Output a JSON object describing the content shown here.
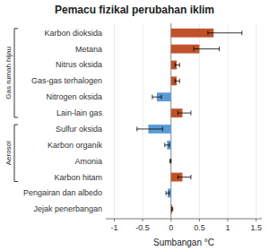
{
  "chart_data": {
    "type": "bar",
    "orientation": "horizontal",
    "title": "Pemacu fizikal perubahan iklim",
    "xlabel": "Sumbangan °C",
    "categories": [
      "Karbon dioksida",
      "Metana",
      "Nitrus oksida",
      "Gas-gas terhalogen",
      "Nitrogen oksida",
      "Lain-lain gas",
      "Sulfur oksida",
      "Karbon organik",
      "Amonia",
      "Karbon hitam",
      "Pengairan dan albedo",
      "Jejak penerbangan"
    ],
    "values": [
      0.75,
      0.5,
      0.1,
      0.1,
      -0.25,
      0.2,
      -0.4,
      -0.07,
      -0.01,
      0.2,
      -0.06,
      0.02
    ],
    "errors_low": [
      0.1,
      0.1,
      0.03,
      0.03,
      0.08,
      0.08,
      0.2,
      0.04,
      0.01,
      0.08,
      0.03,
      0.01
    ],
    "errors_high": [
      0.5,
      0.35,
      0.05,
      0.05,
      0.08,
      0.15,
      0.25,
      0.04,
      0.01,
      0.15,
      0.03,
      0.01
    ],
    "colors": [
      "#c0522a",
      "#c0522a",
      "#c0522a",
      "#c0522a",
      "#5b9bd5",
      "#c0522a",
      "#5b9bd5",
      "#5b9bd5",
      "#5b9bd5",
      "#c0522a",
      "#5b9bd5",
      "#c0522a"
    ],
    "groups": [
      {
        "label": "Gas rumah hijau",
        "categories": [
          "Karbon dioksida",
          "Metana",
          "Nitrus oksida",
          "Gas-gas terhalogen",
          "Nitrogen oksida",
          "Lain-lain gas"
        ]
      },
      {
        "label": "Aerosol",
        "categories": [
          "Sulfur oksida",
          "Karbon organik",
          "Amonia",
          "Karbon hitam"
        ]
      }
    ],
    "xlim": [
      -1.15,
      1.6
    ],
    "xticks": [
      -1,
      -0.5,
      0,
      0.5,
      1,
      1.5
    ],
    "grid": true
  }
}
